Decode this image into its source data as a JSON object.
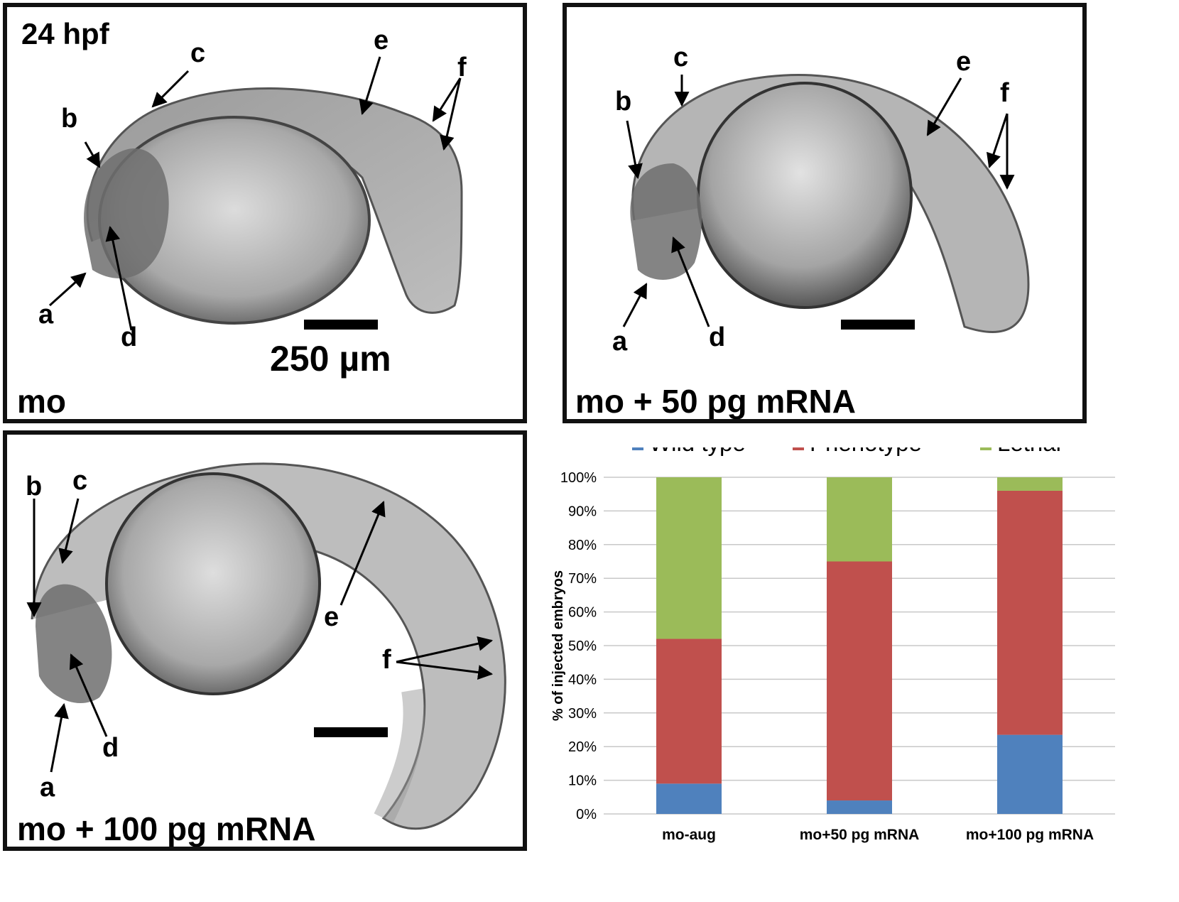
{
  "panels": {
    "p1": {
      "label": "mo",
      "timepoint": "24 hpf",
      "scale_bar_text": "250 µm",
      "letters": [
        "a",
        "b",
        "c",
        "d",
        "e",
        "f"
      ]
    },
    "p2": {
      "label": "mo + 50 pg mRNA",
      "letters": [
        "a",
        "b",
        "c",
        "d",
        "e",
        "f"
      ]
    },
    "p3": {
      "label": "mo + 100 pg mRNA",
      "letters": [
        "a",
        "b",
        "c",
        "d",
        "e",
        "f"
      ]
    }
  },
  "colors": {
    "wild_type": "#4f81bd",
    "phenotype": "#c0504d",
    "lethal": "#9bbb59",
    "grid": "#c8c8c8"
  },
  "chart_data": {
    "type": "bar",
    "stacked": true,
    "categories": [
      "mo-aug",
      "mo+50 pg mRNA",
      "mo+100 pg mRNA"
    ],
    "series": [
      {
        "name": "Wild type",
        "values": [
          9,
          4,
          23.5
        ]
      },
      {
        "name": "Phenotype",
        "values": [
          43,
          71,
          72.5
        ]
      },
      {
        "name": "Lethal",
        "values": [
          48,
          25,
          4
        ]
      }
    ],
    "ylabel": "% of injected embryos",
    "xlabel": "",
    "ylim": [
      0,
      100
    ],
    "yticks": [
      "0%",
      "10%",
      "20%",
      "30%",
      "40%",
      "50%",
      "60%",
      "70%",
      "80%",
      "90%",
      "100%"
    ],
    "ytick_values": [
      0,
      10,
      20,
      30,
      40,
      50,
      60,
      70,
      80,
      90,
      100
    ],
    "grid": true,
    "legend_position": "top"
  }
}
